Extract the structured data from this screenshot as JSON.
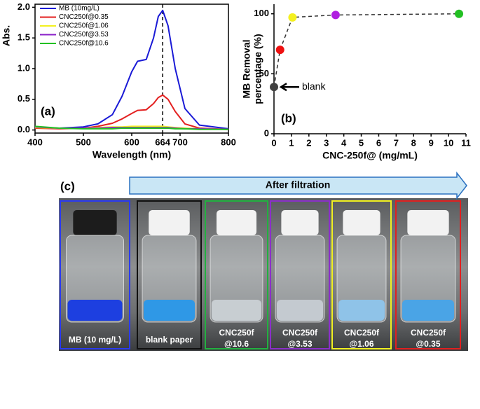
{
  "chart_data": [
    {
      "type": "line",
      "panel_label": "(a)",
      "xlabel": "Wavelength (nm)",
      "ylabel": "Abs.",
      "x": [
        400,
        450,
        500,
        530,
        560,
        580,
        600,
        612,
        630,
        645,
        655,
        664,
        675,
        690,
        710,
        740,
        800
      ],
      "series": [
        {
          "name": "MB (10mg/L)",
          "color": "#1a1ad6",
          "values": [
            0.03,
            0.03,
            0.05,
            0.1,
            0.25,
            0.55,
            0.95,
            1.12,
            1.15,
            1.5,
            1.85,
            1.95,
            1.7,
            1.0,
            0.35,
            0.08,
            0.02
          ]
        },
        {
          "name": "CNC250f@0.35",
          "color": "#e32020",
          "values": [
            0.03,
            0.02,
            0.03,
            0.06,
            0.11,
            0.18,
            0.27,
            0.32,
            0.33,
            0.43,
            0.53,
            0.57,
            0.5,
            0.3,
            0.1,
            0.03,
            0.01
          ]
        },
        {
          "name": "CNC250f@1.06",
          "color": "#f2f020",
          "values": [
            0.04,
            0.03,
            0.03,
            0.04,
            0.05,
            0.05,
            0.06,
            0.06,
            0.06,
            0.06,
            0.06,
            0.06,
            0.05,
            0.04,
            0.03,
            0.02,
            0.01
          ]
        },
        {
          "name": "CNC250f@3.53",
          "color": "#8a20c8",
          "values": [
            0.05,
            0.03,
            0.03,
            0.03,
            0.04,
            0.04,
            0.04,
            0.04,
            0.04,
            0.04,
            0.04,
            0.04,
            0.04,
            0.03,
            0.02,
            0.02,
            0.01
          ]
        },
        {
          "name": "CNC250f@10.6",
          "color": "#22c022",
          "values": [
            0.06,
            0.03,
            0.02,
            0.02,
            0.02,
            0.03,
            0.03,
            0.03,
            0.03,
            0.03,
            0.03,
            0.03,
            0.03,
            0.02,
            0.02,
            0.01,
            0.01
          ]
        }
      ],
      "vline": 664,
      "xlim": [
        400,
        800
      ],
      "xticks": [
        400,
        500,
        600,
        664,
        700,
        800
      ],
      "ylim": [
        -0.05,
        2.05
      ],
      "yticks": [
        {
          "value": 0,
          "label": "0.0"
        },
        {
          "value": 0.5,
          "label": "0.5"
        },
        {
          "value": 1,
          "label": "1.0"
        },
        {
          "value": 1.5,
          "label": "1.5"
        },
        {
          "value": 2,
          "label": "2.0"
        }
      ]
    },
    {
      "type": "scatter",
      "panel_label": "(b)",
      "xlabel": "CNC-250f@ (mg/mL)",
      "ylabel": [
        "MB Removal",
        "percentage (%)"
      ],
      "x": [
        0,
        0.35,
        1.06,
        3.53,
        10.6
      ],
      "values": [
        39,
        70,
        97,
        99,
        100
      ],
      "point_colors": [
        "#404040",
        "#ee1111",
        "#f4f020",
        "#b020e0",
        "#22c022"
      ],
      "annotation": "blank",
      "xlim": [
        0,
        11
      ],
      "xticks": [
        0,
        1,
        2,
        3,
        4,
        5,
        6,
        7,
        8,
        9,
        10,
        11
      ],
      "ylim": [
        0,
        108
      ],
      "yticks": [
        0,
        50,
        100
      ]
    }
  ],
  "photo": {
    "panel_label": "(c)",
    "arrow_label": "After filtration",
    "samples": [
      {
        "lines": [
          "MB (10 mg/L)"
        ],
        "color": "#2a3af0"
      },
      {
        "lines": [
          "blank paper"
        ],
        "color": "#111111"
      },
      {
        "lines": [
          "CNC250f",
          "@10.6"
        ],
        "color": "#22b040"
      },
      {
        "lines": [
          "CNC250f",
          "@3.53"
        ],
        "color": "#8a30c8"
      },
      {
        "lines": [
          "CNC250f",
          "@1.06"
        ],
        "color": "#f0f020"
      },
      {
        "lines": [
          "CNC250f",
          "@0.35"
        ],
        "color": "#e02020"
      }
    ]
  }
}
